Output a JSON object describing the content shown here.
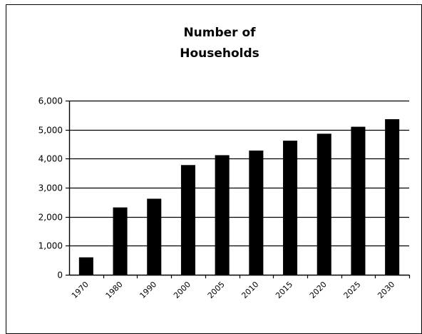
{
  "chart_data": {
    "type": "bar",
    "title_lines": [
      "Number of",
      "Households"
    ],
    "categories": [
      "1970",
      "1980",
      "1990",
      "2000",
      "2005",
      "2010",
      "2015",
      "2020",
      "2025",
      "2030"
    ],
    "values": [
      600,
      2320,
      2620,
      3780,
      4120,
      4280,
      4620,
      4860,
      5100,
      5360
    ],
    "ylim": [
      0,
      6000
    ],
    "yticks": [
      0,
      1000,
      2000,
      3000,
      4000,
      5000,
      6000
    ],
    "ytick_labels": [
      "0",
      "1,000",
      "2,000",
      "3,000",
      "4,000",
      "5,000",
      "6,000"
    ],
    "grid": true,
    "legend": "none",
    "bar_color": "#000000",
    "frame_color": "#000000"
  }
}
